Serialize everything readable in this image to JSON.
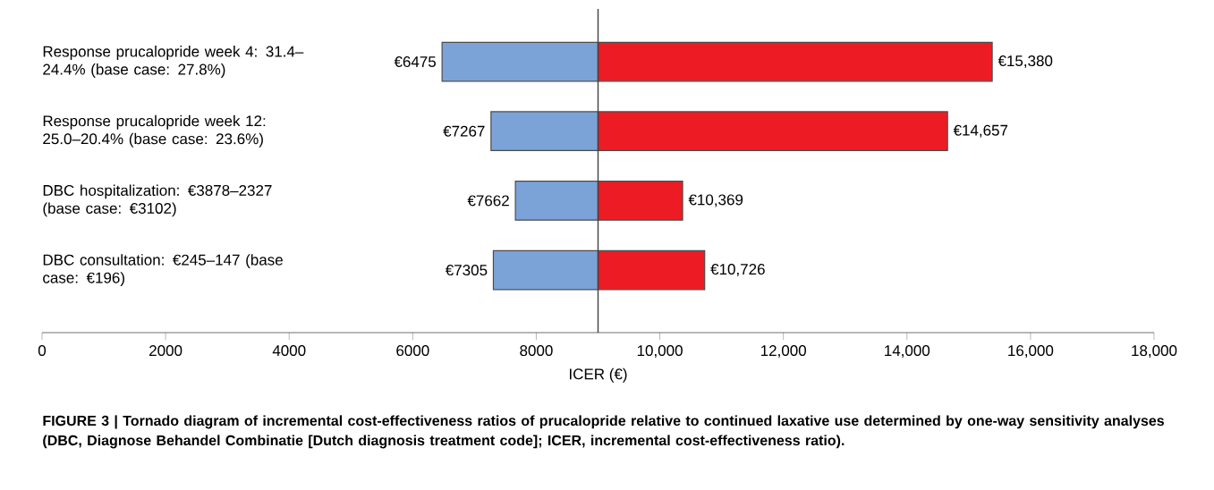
{
  "chart_data": {
    "type": "bar",
    "orientation": "horizontal",
    "xlabel": "ICER (€)",
    "categories": [
      "Response prucalopride week 4: 31.4–24.4% (base case: 27.8%)",
      "Response prucalopride week 12: 25.0–20.4% (base case: 23.6%)",
      "DBC hospitalization: €3878–2327 (base case: €3102)",
      "DBC consultation: €245–147 (base case: €196)"
    ],
    "series": [
      {
        "color": "#7ba3d8",
        "base": [
          6475,
          7267,
          7662,
          7305
        ],
        "values": [
          2525,
          1733,
          1338,
          1695
        ]
      },
      {
        "color": "#ed1c24",
        "base": [
          9000,
          9000,
          9000,
          9000
        ],
        "values": [
          6380,
          5657,
          1369,
          1726
        ]
      }
    ],
    "xlim": [
      0,
      18000
    ],
    "xticks": [
      0,
      2000,
      4000,
      6000,
      8000,
      {
        "value": 10000,
        "label": "10,000"
      },
      {
        "value": 12000,
        "label": "12,000"
      },
      {
        "value": 14000,
        "label": "14,000"
      },
      {
        "value": 16000,
        "label": "16,000"
      },
      {
        "value": 18000,
        "label": "18,000"
      }
    ],
    "ref_lines": [
      {
        "axis": "x",
        "value": 9000,
        "color": "#404040"
      }
    ],
    "annotations": [
      {
        "text": "€6475",
        "x": 6475,
        "y": "Response prucalopride week 4: 31.4–24.4% (base case: 27.8%)"
      },
      {
        "text": "€7267",
        "x": 7267,
        "y": "Response prucalopride week 12: 25.0–20.4% (base case: 23.6%)"
      },
      {
        "text": "€7662",
        "x": 7662,
        "y": "DBC hospitalization: €3878–2327 (base case: €3102)"
      },
      {
        "text": "€7305",
        "x": 7305,
        "y": "DBC consultation: €245–147 (base case: €196)"
      },
      {
        "text": "€15,380",
        "x": 15380,
        "y": "Response prucalopride week 4: 31.4–24.4% (base case: 27.8%)"
      },
      {
        "text": "€14,657",
        "x": 14657,
        "y": "Response prucalopride week 12: 25.0–20.4% (base case: 23.6%)"
      },
      {
        "text": "€10,369",
        "x": 10369,
        "y": "DBC hospitalization: €3878–2327 (base case: €3102)"
      },
      {
        "text": "€10,726",
        "x": 10726,
        "y": "DBC consultation: €245–147 (base case: €196)"
      },
      "FIGURE 3 | Tornado diagram of incremental cost-effectiveness ratios of prucalopride relative to continued laxative use determined by one-way sensitivity analyses (DBC, Diagnose Behandel Combinatie [Dutch diagnosis treatment code]; ICER, incremental cost-effectiveness ratio)."
    ],
    "grid": false
  }
}
